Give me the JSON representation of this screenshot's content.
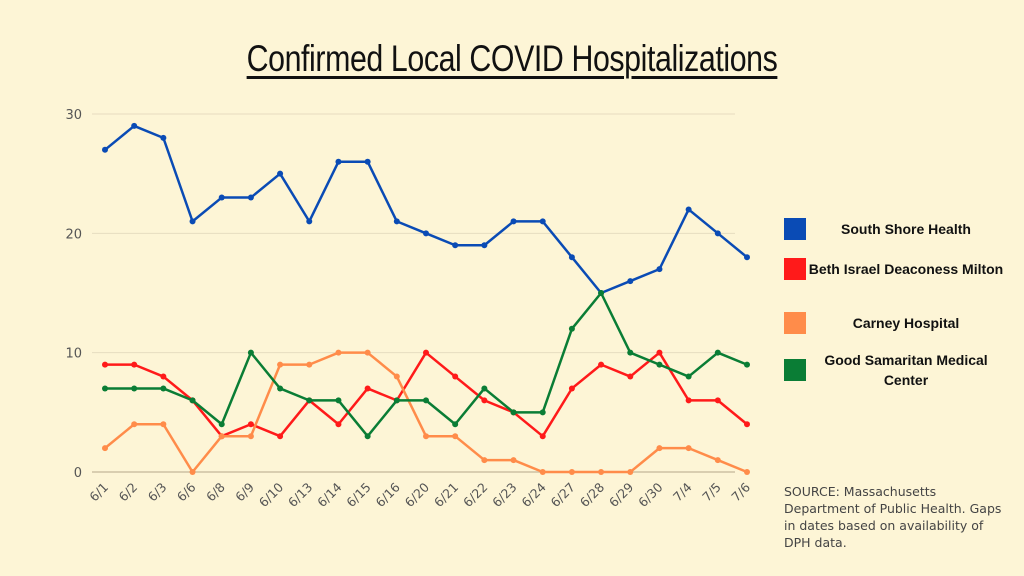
{
  "chart_data": {
    "type": "line",
    "title": "Confirmed Local COVID Hospitalizations",
    "xlabel": "",
    "ylabel": "",
    "ylim": [
      0,
      30
    ],
    "yticks": [
      0,
      10,
      20,
      30
    ],
    "grid": true,
    "legend_position": "right",
    "categories": [
      "6/1",
      "6/2",
      "6/3",
      "6/6",
      "6/8",
      "6/9",
      "6/10",
      "6/13",
      "6/14",
      "6/15",
      "6/16",
      "6/20",
      "6/21",
      "6/22",
      "6/23",
      "6/24",
      "6/27",
      "6/28",
      "6/29",
      "6/30",
      "7/4",
      "7/5",
      "7/6"
    ],
    "series": [
      {
        "name": "South Shore Health",
        "color": "#0a4bb5",
        "values": [
          27,
          29,
          28,
          21,
          23,
          23,
          25,
          21,
          26,
          26,
          21,
          20,
          19,
          19,
          21,
          21,
          18,
          15,
          16,
          17,
          22,
          20,
          18
        ]
      },
      {
        "name": "Beth Israel Deaconess Milton",
        "color": "#ff1a1a",
        "values": [
          9,
          9,
          8,
          6,
          3,
          4,
          3,
          6,
          4,
          7,
          6,
          10,
          8,
          6,
          5,
          3,
          7,
          9,
          8,
          10,
          6,
          6,
          4
        ]
      },
      {
        "name": "Carney Hospital",
        "color": "#ff8c4a",
        "values": [
          2,
          4,
          4,
          0,
          3,
          3,
          9,
          9,
          10,
          10,
          8,
          3,
          3,
          1,
          1,
          0,
          0,
          0,
          0,
          2,
          2,
          1,
          0
        ]
      },
      {
        "name": "Good Samaritan Medical Center",
        "color": "#0a7d35",
        "values": [
          7,
          7,
          7,
          6,
          4,
          10,
          7,
          6,
          6,
          3,
          6,
          6,
          4,
          7,
          5,
          5,
          12,
          15,
          10,
          9,
          8,
          10,
          9
        ]
      }
    ],
    "legend": [
      {
        "label": "South Shore Health",
        "color": "#0a4bb5"
      },
      {
        "label": "Beth Israel Deaconess Milton",
        "color": "#ff1a1a"
      },
      {
        "label": "Carney Hospital",
        "color": "#ff8c4a"
      },
      {
        "label": "Good Samaritan Medical Center",
        "color": "#0a7d35"
      }
    ]
  },
  "source_note": "SOURCE: Massachusetts Department of Public Health. Gaps in dates based on availability of DPH data."
}
